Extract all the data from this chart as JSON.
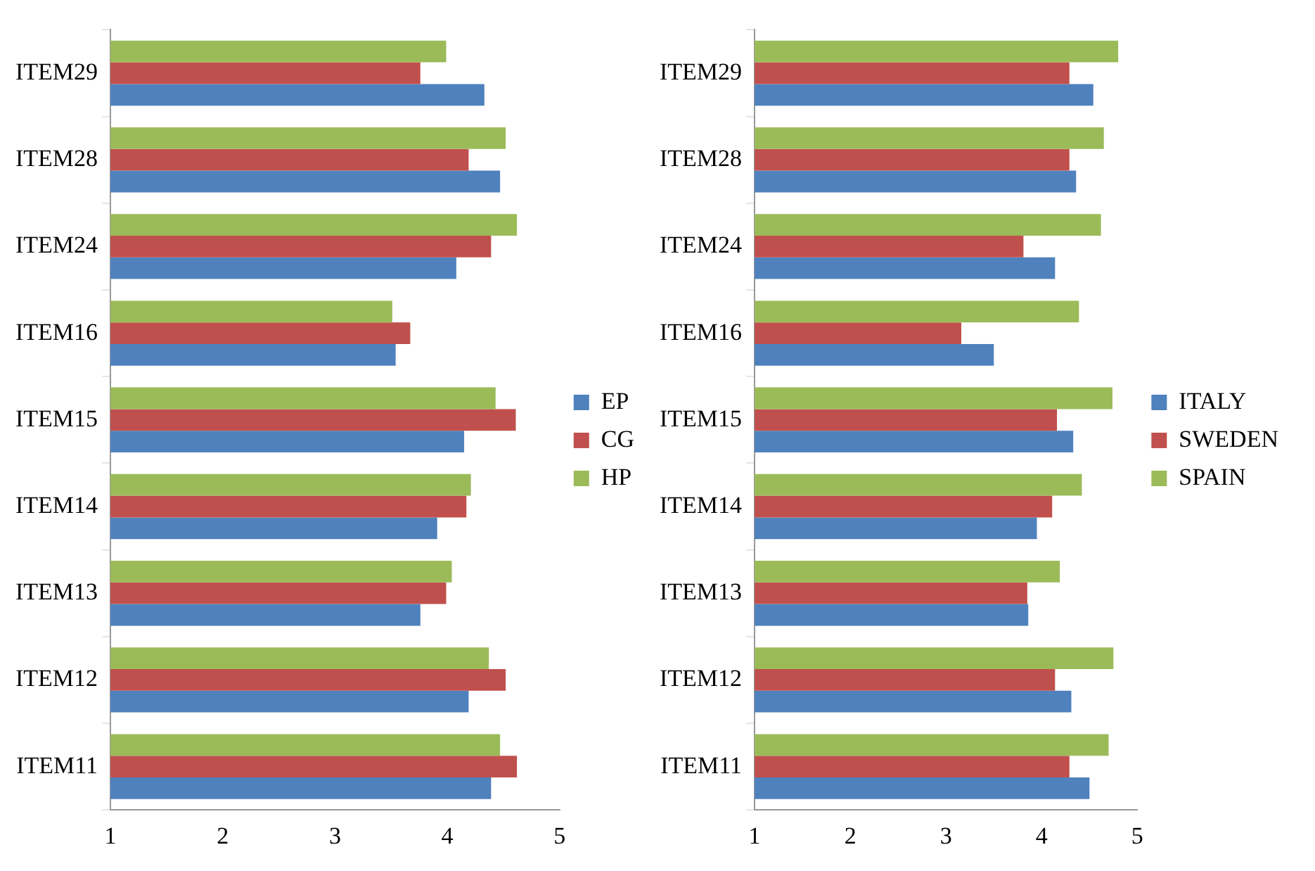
{
  "chart_data": [
    {
      "type": "bar",
      "orientation": "horizontal",
      "categories": [
        "ITEM29",
        "ITEM28",
        "ITEM24",
        "ITEM16",
        "ITEM15",
        "ITEM14",
        "ITEM13",
        "ITEM12",
        "ITEM11"
      ],
      "xlim": [
        1,
        5
      ],
      "xticks": [
        1,
        2,
        3,
        4,
        5
      ],
      "grid": false,
      "legend": "right",
      "series": [
        {
          "name": "HP",
          "color": "#9bbb59",
          "values": [
            3.99,
            4.52,
            4.62,
            3.51,
            4.43,
            4.21,
            4.04,
            4.37,
            4.47
          ]
        },
        {
          "name": "CG",
          "color": "#c0504d",
          "values": [
            3.76,
            4.19,
            4.39,
            3.67,
            4.61,
            4.17,
            3.99,
            4.52,
            4.62
          ]
        },
        {
          "name": "EP",
          "color": "#4f81bd",
          "values": [
            4.33,
            4.47,
            4.08,
            3.54,
            4.15,
            3.91,
            3.76,
            4.19,
            4.39
          ]
        }
      ]
    },
    {
      "type": "bar",
      "orientation": "horizontal",
      "categories": [
        "ITEM29",
        "ITEM28",
        "ITEM24",
        "ITEM16",
        "ITEM15",
        "ITEM14",
        "ITEM13",
        "ITEM12",
        "ITEM11"
      ],
      "xlim": [
        1,
        5
      ],
      "xticks": [
        1,
        2,
        3,
        4,
        5
      ],
      "grid": false,
      "legend": "right",
      "series": [
        {
          "name": "SPAIN",
          "color": "#9bbb59",
          "values": [
            4.8,
            4.65,
            4.62,
            4.39,
            4.74,
            4.42,
            4.19,
            4.75,
            4.7
          ]
        },
        {
          "name": "SWEDEN",
          "color": "#c0504d",
          "values": [
            4.29,
            4.29,
            3.81,
            3.16,
            4.16,
            4.11,
            3.85,
            4.14,
            4.29
          ]
        },
        {
          "name": "ITALY",
          "color": "#4f81bd",
          "values": [
            4.54,
            4.36,
            4.14,
            3.5,
            4.33,
            3.95,
            3.86,
            4.31,
            4.5
          ]
        }
      ]
    }
  ]
}
